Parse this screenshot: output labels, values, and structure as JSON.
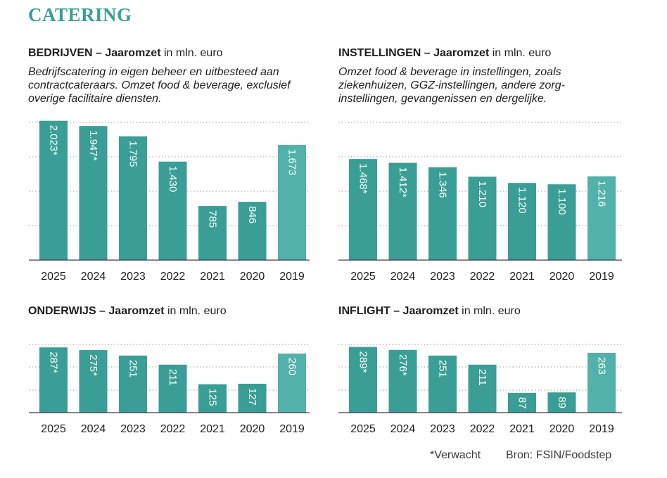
{
  "page_title": "CATERING",
  "footnote": "*Verwacht",
  "source": "Bron: FSIN/Foodstep",
  "colors": {
    "accent": "#3a9e96",
    "bar": "#3a9e96",
    "bar_alt": "#52b1aa",
    "text": "#1e1e1e"
  },
  "chart_data": [
    {
      "type": "bar",
      "segment": "BEDRIJVEN",
      "title_bold": "BEDRIJVEN – Jaaromzet",
      "title_unit": " in mln. euro",
      "description": "Bedrijfscatering in eigen beheer en uitbesteed aan contractcateraars. Omzet food & beverage, exclusief overige facilitaire diensten.",
      "categories": [
        "2025",
        "2024",
        "2023",
        "2022",
        "2021",
        "2020",
        "2019"
      ],
      "values": [
        2023,
        1947,
        1795,
        1430,
        785,
        846,
        1673
      ],
      "value_labels": [
        "2.023*",
        "1.947*",
        "1.795",
        "1.430",
        "785",
        "846",
        "1.673"
      ],
      "ylim": [
        0,
        2000
      ],
      "grid": true
    },
    {
      "type": "bar",
      "segment": "INSTELLINGEN",
      "title_bold": "INSTELLINGEN – Jaaromzet",
      "title_unit": " in mln. euro",
      "description": "Omzet food & beverage in instellingen, zoals ziekenhuizen, GGZ-instellingen, andere zorg-instellingen, gevangenissen en dergelijke.",
      "categories": [
        "2025",
        "2024",
        "2023",
        "2022",
        "2021",
        "2020",
        "2019"
      ],
      "values": [
        1468,
        1412,
        1346,
        1210,
        1120,
        1100,
        1216
      ],
      "value_labels": [
        "1.468*",
        "1.412*",
        "1.346",
        "1.210",
        "1.120",
        "1.100",
        "1.216"
      ],
      "ylim": [
        0,
        2000
      ],
      "grid": true
    },
    {
      "type": "bar",
      "segment": "ONDERWIJS",
      "title_bold": "ONDERWIJS – Jaaromzet",
      "title_unit": " in mln. euro",
      "description": "",
      "categories": [
        "2025",
        "2024",
        "2023",
        "2022",
        "2021",
        "2020",
        "2019"
      ],
      "values": [
        287,
        275,
        251,
        211,
        125,
        127,
        260
      ],
      "value_labels": [
        "287*",
        "275*",
        "251",
        "211",
        "125",
        "127",
        "260"
      ],
      "ylim": [
        0,
        300
      ],
      "grid": true
    },
    {
      "type": "bar",
      "segment": "INFLIGHT",
      "title_bold": "INFLIGHT – Jaaromzet",
      "title_unit": " in mln. euro",
      "description": "",
      "categories": [
        "2025",
        "2024",
        "2023",
        "2022",
        "2021",
        "2020",
        "2019"
      ],
      "values": [
        289,
        276,
        251,
        211,
        87,
        89,
        263
      ],
      "value_labels": [
        "289*",
        "276*",
        "251",
        "211",
        "87",
        "89",
        "263"
      ],
      "ylim": [
        0,
        300
      ],
      "grid": true
    }
  ]
}
